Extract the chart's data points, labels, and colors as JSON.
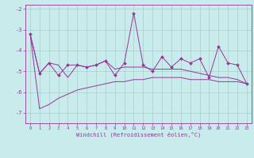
{
  "x": [
    0,
    1,
    2,
    3,
    4,
    5,
    6,
    7,
    8,
    9,
    10,
    11,
    12,
    13,
    14,
    15,
    16,
    17,
    18,
    19,
    20,
    21,
    22,
    23
  ],
  "main_line": [
    -3.2,
    -5.1,
    -4.6,
    -5.2,
    -4.7,
    -4.7,
    -4.8,
    -4.7,
    -4.5,
    -5.2,
    -4.6,
    -2.2,
    -4.7,
    -5.0,
    -4.3,
    -4.8,
    -4.4,
    -4.6,
    -4.4,
    -5.3,
    -3.8,
    -4.6,
    -4.7,
    -5.6
  ],
  "upper_line": [
    -3.2,
    -5.1,
    -4.6,
    -4.7,
    -5.3,
    -4.7,
    -4.8,
    -4.7,
    -4.5,
    -4.9,
    -4.8,
    -4.8,
    -4.8,
    -4.9,
    -4.9,
    -4.9,
    -4.9,
    -5.0,
    -5.1,
    -5.2,
    -5.3,
    -5.3,
    -5.4,
    -5.6
  ],
  "lower_line": [
    -3.2,
    -6.8,
    -6.6,
    -6.3,
    -6.1,
    -5.9,
    -5.8,
    -5.7,
    -5.6,
    -5.5,
    -5.5,
    -5.4,
    -5.4,
    -5.3,
    -5.3,
    -5.3,
    -5.3,
    -5.4,
    -5.4,
    -5.4,
    -5.5,
    -5.5,
    -5.5,
    -5.6
  ],
  "color": "#993399",
  "bg_color": "#c8ecec",
  "grid_color": "#aacccc",
  "xlabel": "Windchill (Refroidissement éolien,°C)",
  "xlim": [
    -0.5,
    23.5
  ],
  "ylim": [
    -7.5,
    -1.8
  ],
  "yticks": [
    -7,
    -6,
    -5,
    -4,
    -3,
    -2
  ],
  "xticks": [
    0,
    1,
    2,
    3,
    4,
    5,
    6,
    7,
    8,
    9,
    10,
    11,
    12,
    13,
    14,
    15,
    16,
    17,
    18,
    19,
    20,
    21,
    22,
    23
  ]
}
